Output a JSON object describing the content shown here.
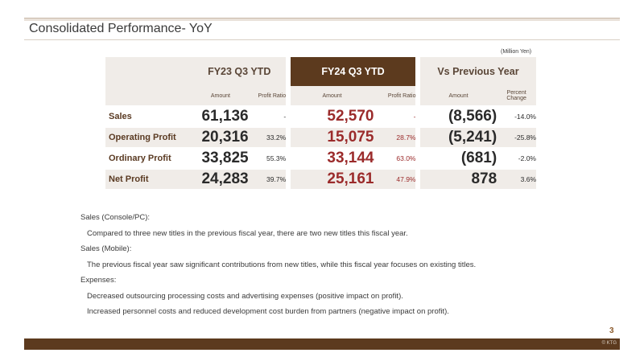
{
  "slide": {
    "title": "Consolidated Performance- YoY",
    "unit": "(Million Yen)",
    "page_number": "3",
    "copyright": "© KTG"
  },
  "table": {
    "groups": {
      "fy23": "FY23 Q3 YTD",
      "fy24": "FY24 Q3 YTD",
      "vs": "Vs Previous Year"
    },
    "subheaders": {
      "fy23_amount": "Amount",
      "fy23_ratio": "Profit Ratio",
      "fy24_amount": "Amount",
      "fy24_ratio": "Profit Ratio",
      "vs_amount": "Amount",
      "vs_change": "Percent Change"
    },
    "rows": [
      {
        "label": "Sales",
        "fy23_amount": "61,136",
        "fy23_ratio": "-",
        "fy24_amount": "52,570",
        "fy24_ratio": "-",
        "vs_amount": "(8,566)",
        "vs_change": "-14.0%"
      },
      {
        "label": "Operating Profit",
        "fy23_amount": "20,316",
        "fy23_ratio": "33.2%",
        "fy24_amount": "15,075",
        "fy24_ratio": "28.7%",
        "vs_amount": "(5,241)",
        "vs_change": "-25.8%"
      },
      {
        "label": "Ordinary Profit",
        "fy23_amount": "33,825",
        "fy23_ratio": "55.3%",
        "fy24_amount": "33,144",
        "fy24_ratio": "63.0%",
        "vs_amount": "(681)",
        "vs_change": "-2.0%"
      },
      {
        "label": "Net Profit",
        "fy23_amount": "24,283",
        "fy23_ratio": "39.7%",
        "fy24_amount": "25,161",
        "fy24_ratio": "47.9%",
        "vs_amount": "878",
        "vs_change": "3.6%"
      }
    ]
  },
  "notes": [
    {
      "text": "Sales (Console/PC):",
      "indent": false
    },
    {
      "text": "Compared to three new titles in the previous fiscal year, there are two new titles this fiscal year.",
      "indent": true
    },
    {
      "text": "Sales (Mobile):",
      "indent": false
    },
    {
      "text": "The previous fiscal year saw significant contributions from new titles, while this fiscal year focuses on existing titles.",
      "indent": true
    },
    {
      "text": "Expenses:",
      "indent": false
    },
    {
      "text": "Decreased outsourcing processing costs and advertising expenses (positive impact on profit).",
      "indent": true
    },
    {
      "text": "Increased personnel costs and reduced development cost burden from partners (negative impact on profit).",
      "indent": true
    }
  ],
  "colors": {
    "brand_brown": "#5c3a1e",
    "highlight_red": "#9b2b2b",
    "panel_beige": "#f0ece8"
  }
}
